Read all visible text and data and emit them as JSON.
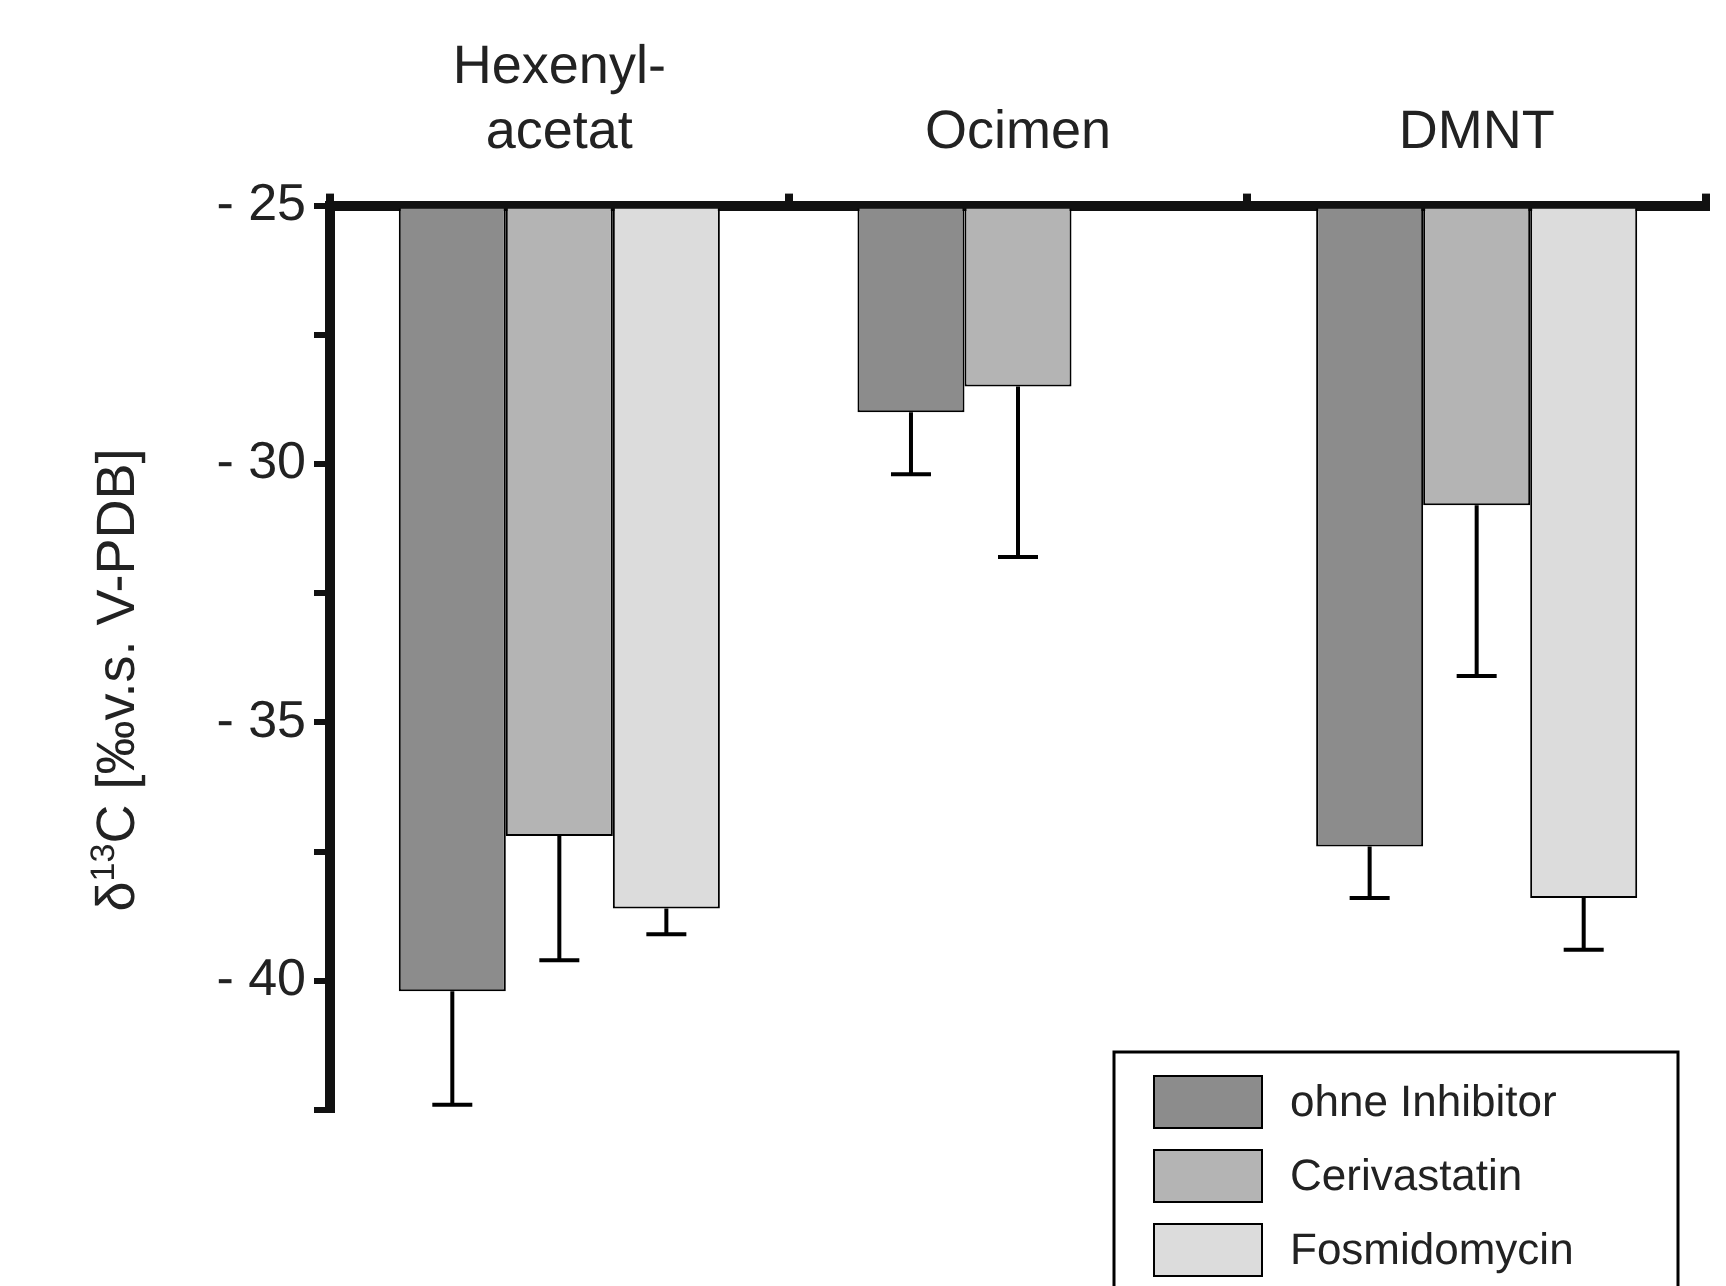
{
  "chart_data": {
    "type": "bar",
    "ylabel": "δ$^{13}$C [‰v.s. V-PDB]",
    "categories": [
      "Hexenyl-acetat",
      "Ocimen",
      "DMNT"
    ],
    "series": [
      {
        "name": "ohne Inhibitor",
        "color": "#8c8c8c",
        "values": [
          -40.2,
          -29.0,
          -37.4
        ],
        "errors": [
          [
            -42.4,
            -40.2
          ],
          [
            -30.2,
            -29.0
          ],
          [
            -38.4,
            -37.4
          ]
        ]
      },
      {
        "name": "Cerivastatin",
        "color": "#b4b4b4",
        "values": [
          -37.2,
          -28.5,
          -30.8
        ],
        "errors": [
          [
            -39.6,
            -37.2
          ],
          [
            -31.8,
            -28.5
          ],
          [
            -34.1,
            -30.8
          ]
        ]
      },
      {
        "name": "Fosmidomycin",
        "color": "#dcdcdc",
        "values": [
          -38.6,
          null,
          -38.4
        ],
        "errors": [
          [
            -39.1,
            -38.6
          ],
          null,
          [
            -39.4,
            -38.4
          ]
        ]
      }
    ],
    "ylim": [
      -42.5,
      -25
    ],
    "yticks": [
      {
        "value": -25,
        "label": "- 25"
      },
      {
        "value": -27.5,
        "label": null
      },
      {
        "value": -30,
        "label": "- 30"
      },
      {
        "value": -32.5,
        "label": null
      },
      {
        "value": -35,
        "label": "- 35"
      },
      {
        "value": -37.5,
        "label": null
      },
      {
        "value": -40,
        "label": "- 40"
      },
      {
        "value": -42.5,
        "label": null
      }
    ],
    "legend": "bottom right"
  }
}
